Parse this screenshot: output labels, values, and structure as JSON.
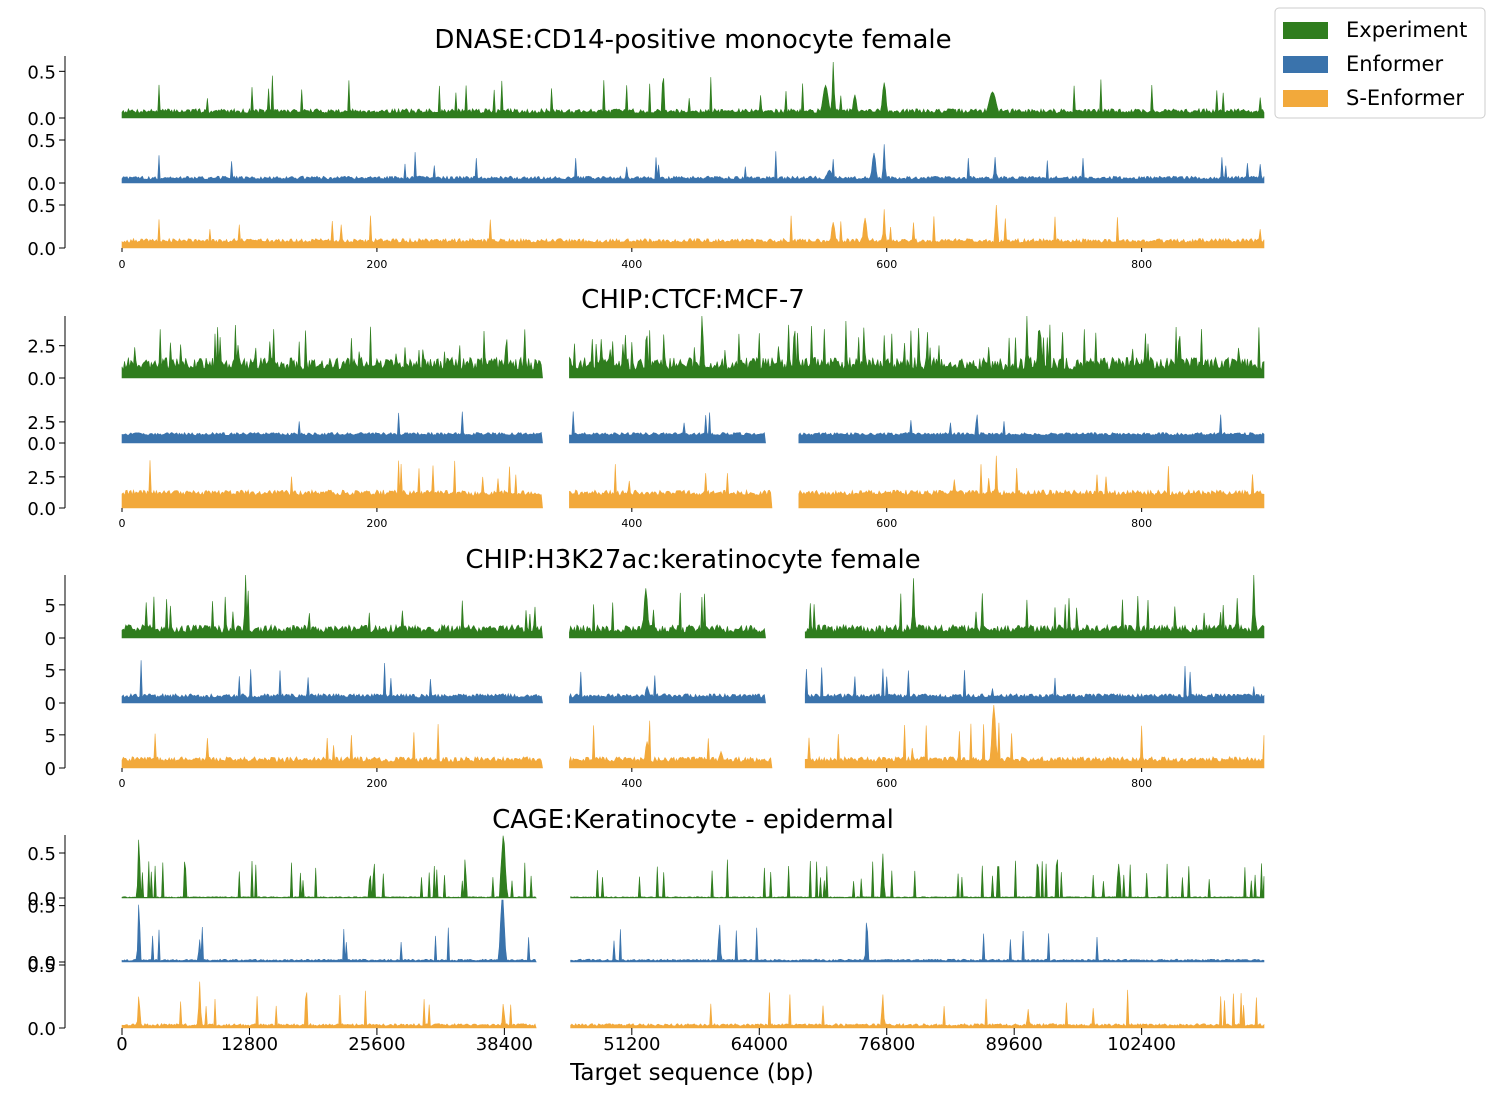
{
  "colors": {
    "Experiment": "#2f7d1e",
    "Enformer": "#3a73ac",
    "S-Enformer": "#f2a93b"
  },
  "legend": {
    "placement": "top-right",
    "entries": [
      "Experiment",
      "Enformer",
      "S-Enformer"
    ]
  },
  "chart_data": [
    {
      "type": "area",
      "title": "DNASE:CD14-positive monocyte female",
      "xlim": [
        0,
        896
      ],
      "xticks": [
        "0",
        "200",
        "400",
        "600",
        "800"
      ],
      "gaps": [],
      "series": [
        {
          "name": "Experiment",
          "ylim": [
            0,
            0.6
          ],
          "yticks": [
            "0.5",
            "0.0"
          ],
          "baseline": 0.05,
          "noise": 0.05,
          "spikeRate": 0.03,
          "peaks": [
            [
              552,
              0.35,
              3
            ],
            [
              558,
              0.6,
              1
            ],
            [
              575,
              0.25,
              2
            ],
            [
              598,
              0.38,
              2
            ],
            [
              683,
              0.28,
              4
            ],
            [
              893,
              0.22,
              1
            ]
          ]
        },
        {
          "name": "Enformer",
          "ylim": [
            0,
            0.5
          ],
          "yticks": [
            "0.5",
            "0.0"
          ],
          "baseline": 0.04,
          "noise": 0.04,
          "spikeRate": 0.02,
          "peaks": [
            [
              555,
              0.15,
              3
            ],
            [
              590,
              0.35,
              2
            ],
            [
              598,
              0.45,
              1
            ],
            [
              685,
              0.3,
              1
            ],
            [
              893,
              0.22,
              1
            ]
          ]
        },
        {
          "name": "S-Enformer",
          "ylim": [
            0,
            0.5
          ],
          "yticks": [
            "0.5",
            "0.0"
          ],
          "baseline": 0.06,
          "noise": 0.05,
          "spikeRate": 0.02,
          "peaks": [
            [
              558,
              0.3,
              2
            ],
            [
              583,
              0.35,
              2
            ],
            [
              598,
              0.45,
              1
            ],
            [
              686,
              0.7,
              1
            ],
            [
              893,
              0.22,
              1
            ]
          ]
        }
      ]
    },
    {
      "type": "area",
      "title": "CHIP:CTCF:MCF-7",
      "xlim": [
        0,
        896
      ],
      "xticks": [
        "0",
        "200",
        "400",
        "600",
        "800"
      ],
      "gaps": [
        [
          330,
          350
        ]
      ],
      "series": [
        {
          "name": "Experiment",
          "ylim": [
            0,
            4.8
          ],
          "yticks": [
            "2.5",
            "0.0"
          ],
          "baseline": 0.6,
          "noise": 1.0,
          "spikeRate": 0.12,
          "peaks": [
            [
              455,
              4.8,
              1
            ],
            [
              710,
              4.8,
              1
            ]
          ]
        },
        {
          "name": "Enformer",
          "ylim": [
            0,
            4.5
          ],
          "yticks": [
            "2.5",
            "0.0"
          ],
          "baseline": 0.9,
          "noise": 0.35,
          "spikeRate": 0.02,
          "peaks": [
            [
              458,
              3.3,
              1
            ],
            [
              650,
              2.4,
              1
            ]
          ],
          "gaps": [
            [
              330,
              350
            ],
            [
              505,
              530
            ]
          ]
        },
        {
          "name": "S-Enformer",
          "ylim": [
            0,
            4.5
          ],
          "yticks": [
            "2.5",
            "0.0"
          ],
          "baseline": 1.0,
          "noise": 0.45,
          "spikeRate": 0.03,
          "peaks": [
            [
              458,
              2.8,
              1
            ],
            [
              686,
              4.2,
              1
            ],
            [
              702,
              3.2,
              1
            ]
          ],
          "gaps": [
            [
              330,
              350
            ],
            [
              510,
              530
            ]
          ]
        }
      ]
    },
    {
      "type": "area",
      "title": "CHIP:H3K27ac:keratinocyte female",
      "xlim": [
        0,
        896
      ],
      "xticks": [
        "0",
        "200",
        "400",
        "600",
        "800"
      ],
      "gaps": [
        [
          330,
          350
        ]
      ],
      "series": [
        {
          "name": "Experiment",
          "ylim": [
            0,
            9.5
          ],
          "yticks": [
            "5",
            "0"
          ],
          "baseline": 0.8,
          "noise": 1.2,
          "spikeRate": 0.06,
          "peaks": [
            [
              97,
              9.5,
              1
            ],
            [
              411,
              7.5,
              2
            ],
            [
              621,
              9.0,
              1
            ],
            [
              888,
              9.5,
              1
            ],
            [
              875,
              6.0,
              1
            ]
          ],
          "gaps": [
            [
              330,
              350
            ],
            [
              505,
              535
            ]
          ]
        },
        {
          "name": "Enformer",
          "ylim": [
            0,
            9.5
          ],
          "yticks": [
            "5",
            "0"
          ],
          "baseline": 0.8,
          "noise": 0.6,
          "spikeRate": 0.02,
          "peaks": [
            [
              412,
              2.5,
              2
            ],
            [
              683,
              2.2,
              1
            ],
            [
              888,
              2.5,
              1
            ]
          ],
          "gaps": [
            [
              330,
              350
            ],
            [
              505,
              535
            ]
          ]
        },
        {
          "name": "S-Enformer",
          "ylim": [
            0,
            9.5
          ],
          "yticks": [
            "5",
            "0"
          ],
          "baseline": 0.9,
          "noise": 0.8,
          "spikeRate": 0.02,
          "peaks": [
            [
              67,
              4.5,
              1
            ],
            [
              412,
              4.0,
              2
            ],
            [
              620,
              3.0,
              1
            ],
            [
              684,
              9.5,
              2
            ],
            [
              470,
              2.5,
              2
            ]
          ],
          "gaps": [
            [
              330,
              350
            ],
            [
              510,
              535
            ]
          ]
        }
      ]
    },
    {
      "type": "area",
      "title": "CAGE:Keratinocyte - epidermal",
      "xlim": [
        0,
        114688
      ],
      "xticks": [
        "0",
        "12800",
        "25600",
        "38400",
        "51200",
        "64000",
        "76800",
        "89600",
        "102400"
      ],
      "xlabel": "Target sequence (bp)",
      "gaps": [
        [
          41600,
          45000
        ]
      ],
      "series": [
        {
          "name": "Experiment",
          "ylim": [
            0,
            0.7
          ],
          "yticks": [
            "0.5",
            "0.0"
          ],
          "baseline": 0.005,
          "noise": 0.01,
          "spikeRate": 0.09,
          "peaks": [
            [
              1700,
              0.7,
              1
            ],
            [
              38300,
              0.7,
              2
            ],
            [
              76400,
              0.5,
              1
            ],
            [
              88000,
              0.45,
              1
            ]
          ]
        },
        {
          "name": "Enformer",
          "ylim": [
            0,
            0.55
          ],
          "yticks": [
            "0.5",
            "0.0"
          ],
          "baseline": 0.01,
          "noise": 0.015,
          "spikeRate": 0.03,
          "peaks": [
            [
              1700,
              0.55,
              1
            ],
            [
              7800,
              0.2,
              1
            ],
            [
              38200,
              0.6,
              2
            ],
            [
              60000,
              0.35,
              1
            ],
            [
              74800,
              0.4,
              1
            ]
          ]
        },
        {
          "name": "S-Enformer",
          "ylim": [
            0,
            0.5
          ],
          "yticks": [
            "0.5",
            "0.0"
          ],
          "baseline": 0.015,
          "noise": 0.02,
          "spikeRate": 0.03,
          "peaks": [
            [
              1700,
              0.27,
              1
            ],
            [
              7800,
              0.37,
              1
            ],
            [
              38300,
              0.2,
              1
            ],
            [
              76400,
              0.27,
              1
            ],
            [
              91000,
              0.15,
              1
            ]
          ]
        }
      ]
    }
  ]
}
